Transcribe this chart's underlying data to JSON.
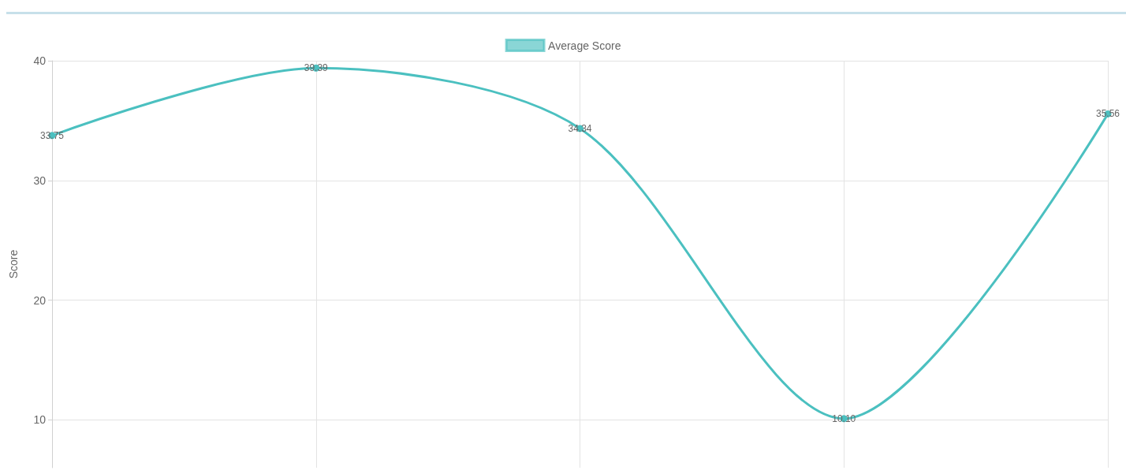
{
  "chart_data": {
    "type": "line",
    "ylabel": "Score",
    "categories": [
      null,
      null,
      null,
      null,
      null
    ],
    "series": [
      {
        "name": "Average Score",
        "color": "#4bc0c0",
        "values": [
          33.75,
          39.39,
          34.34,
          10.1,
          35.56
        ],
        "value_labels": [
          "33.75",
          "39.39",
          "34.34",
          "10.10",
          "35.56"
        ]
      }
    ],
    "ylim": [
      6,
      40
    ],
    "yticks": [
      10,
      20,
      30,
      40
    ],
    "grid": true,
    "legend": "top",
    "marker": "circle",
    "line_style": "solid"
  }
}
